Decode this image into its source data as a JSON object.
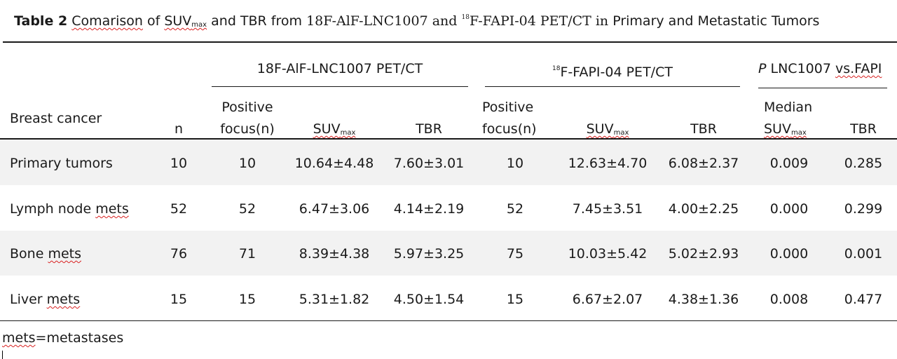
{
  "caption": {
    "label": "Table 2",
    "w1": "Comarison",
    "t1": " of ",
    "suv": "SUV",
    "max": "max",
    "t2": " and TBR from ",
    "serif1": "18F-AlF-LNC1007 and ",
    "sup18": "18",
    "serif2": "F-FAPI-04 PET/CT in",
    "t3": " Primary and Metastatic Tumors"
  },
  "header": {
    "group1": "18F-AlF-LNC1007 PET/CT",
    "group2_sup": "18",
    "group2": "F-FAPI-04 PET/CT",
    "group3_p": "P",
    "group3_text": " LNC1007 ",
    "group3_vs": "vs.FAPI",
    "row_label": "Breast cancer",
    "n": "n",
    "pos1_line1": "Positive",
    "pos1_line2": "focus(n)",
    "suv1": "SUV",
    "suv1_sub": "max",
    "tbr1": "TBR",
    "pos2_line1": "Positive",
    "pos2_line2": "focus(n)",
    "suv2": "SUV",
    "suv2_sub": "max",
    "tbr2": "TBR",
    "median_line1": "Median",
    "median_suv": "SUV",
    "median_sub": "max",
    "tbr3": "TBR"
  },
  "rows": [
    {
      "pre": "Primary tumors",
      "wavy": "",
      "n": "10",
      "pos1": "10",
      "suv1": "10.64±4.48",
      "tbr1": "7.60±3.01",
      "pos2": "10",
      "suv2": "12.63±4.70",
      "tbr2": "6.08±2.37",
      "p_suv": "0.009",
      "p_tbr": "0.285"
    },
    {
      "pre": "Lymph node ",
      "wavy": "mets",
      "n": "52",
      "pos1": "52",
      "suv1": "6.47±3.06",
      "tbr1": "4.14±2.19",
      "pos2": "52",
      "suv2": "7.45±3.51",
      "tbr2": "4.00±2.25",
      "p_suv": "0.000",
      "p_tbr": "0.299"
    },
    {
      "pre": "Bone ",
      "wavy": "mets",
      "n": "76",
      "pos1": "71",
      "suv1": "8.39±4.38",
      "tbr1": "5.97±3.25",
      "pos2": "75",
      "suv2": "10.03±5.42",
      "tbr2": "5.02±2.93",
      "p_suv": "0.000",
      "p_tbr": "0.001"
    },
    {
      "pre": "Liver ",
      "wavy": "mets",
      "n": "15",
      "pos1": "15",
      "suv1": "5.31±1.82",
      "tbr1": "4.50±1.54",
      "pos2": "15",
      "suv2": "6.67±2.07",
      "tbr2": "4.38±1.36",
      "p_suv": "0.008",
      "p_tbr": "0.477"
    }
  ],
  "footnote": {
    "wavy": "mets",
    "rest": "=metastases"
  }
}
